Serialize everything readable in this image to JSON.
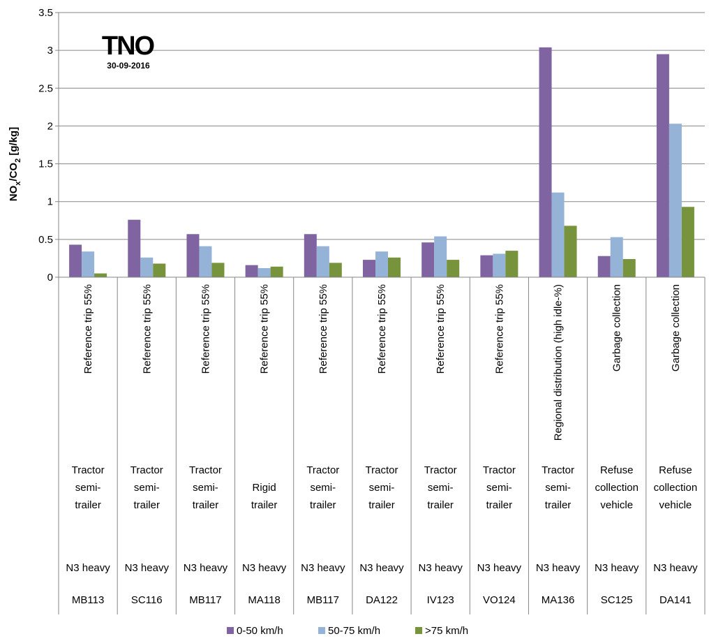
{
  "chart_data": {
    "type": "bar",
    "ylabel_parts": {
      "a": "NO",
      "a_sub": "x",
      "b": "/CO",
      "b_sub": "2",
      "c": " [g/kg]"
    },
    "ylim": [
      0,
      3.5
    ],
    "yticks": [
      "0",
      "0.5",
      "1",
      "1.5",
      "2",
      "2.5",
      "3",
      "3.5"
    ],
    "grid": true,
    "legend_position": "bottom",
    "logo": {
      "text": "TNO",
      "date": "30-09-2016"
    },
    "categories": [
      {
        "trip": "Reference trip 55%",
        "vehicle": [
          "Tractor",
          "semi-",
          "trailer"
        ],
        "class": "N3 heavy",
        "id": "MB113"
      },
      {
        "trip": "Reference trip 55%",
        "vehicle": [
          "Tractor",
          "semi-",
          "trailer"
        ],
        "class": "N3 heavy",
        "id": "SC116"
      },
      {
        "trip": "Reference trip 55%",
        "vehicle": [
          "Tractor",
          "semi-",
          "trailer"
        ],
        "class": "N3 heavy",
        "id": "MB117"
      },
      {
        "trip": "Reference trip 55%",
        "vehicle": [
          "Rigid",
          "trailer"
        ],
        "class": "N3 heavy",
        "id": "MA118"
      },
      {
        "trip": "Reference trip 55%",
        "vehicle": [
          "Tractor",
          "semi-",
          "trailer"
        ],
        "class": "N3 heavy",
        "id": "MB117"
      },
      {
        "trip": "Reference trip 55%",
        "vehicle": [
          "Tractor",
          "semi-",
          "trailer"
        ],
        "class": "N3 heavy",
        "id": "DA122"
      },
      {
        "trip": "Reference trip 55%",
        "vehicle": [
          "Tractor",
          "semi-",
          "trailer"
        ],
        "class": "N3 heavy",
        "id": "IV123"
      },
      {
        "trip": "Reference trip 55%",
        "vehicle": [
          "Tractor",
          "semi-",
          "trailer"
        ],
        "class": "N3 heavy",
        "id": "VO124"
      },
      {
        "trip": "Regional distribution (high idle-%)",
        "vehicle": [
          "Tractor",
          "semi-",
          "trailer"
        ],
        "class": "N3 heavy",
        "id": "MA136"
      },
      {
        "trip": "Garbage collection",
        "vehicle": [
          "Refuse",
          "collection",
          "vehicle"
        ],
        "class": "N3 heavy",
        "id": "SC125"
      },
      {
        "trip": "Garbage collection",
        "vehicle": [
          "Refuse",
          "collection",
          "vehicle"
        ],
        "class": "N3 heavy",
        "id": "DA141"
      }
    ],
    "series": [
      {
        "name": "0-50 km/h",
        "color": "#8064a2",
        "values": [
          0.43,
          0.76,
          0.57,
          0.16,
          0.57,
          0.23,
          0.46,
          0.29,
          3.04,
          0.28,
          2.95
        ]
      },
      {
        "name": "50-75 km/h",
        "color": "#95b3d7",
        "values": [
          0.34,
          0.26,
          0.41,
          0.12,
          0.41,
          0.34,
          0.54,
          0.31,
          1.12,
          0.53,
          2.03
        ]
      },
      {
        "name": ">75 km/h",
        "color": "#77933c",
        "values": [
          0.05,
          0.18,
          0.19,
          0.14,
          0.19,
          0.26,
          0.23,
          0.35,
          0.68,
          0.24,
          0.93
        ]
      }
    ]
  }
}
